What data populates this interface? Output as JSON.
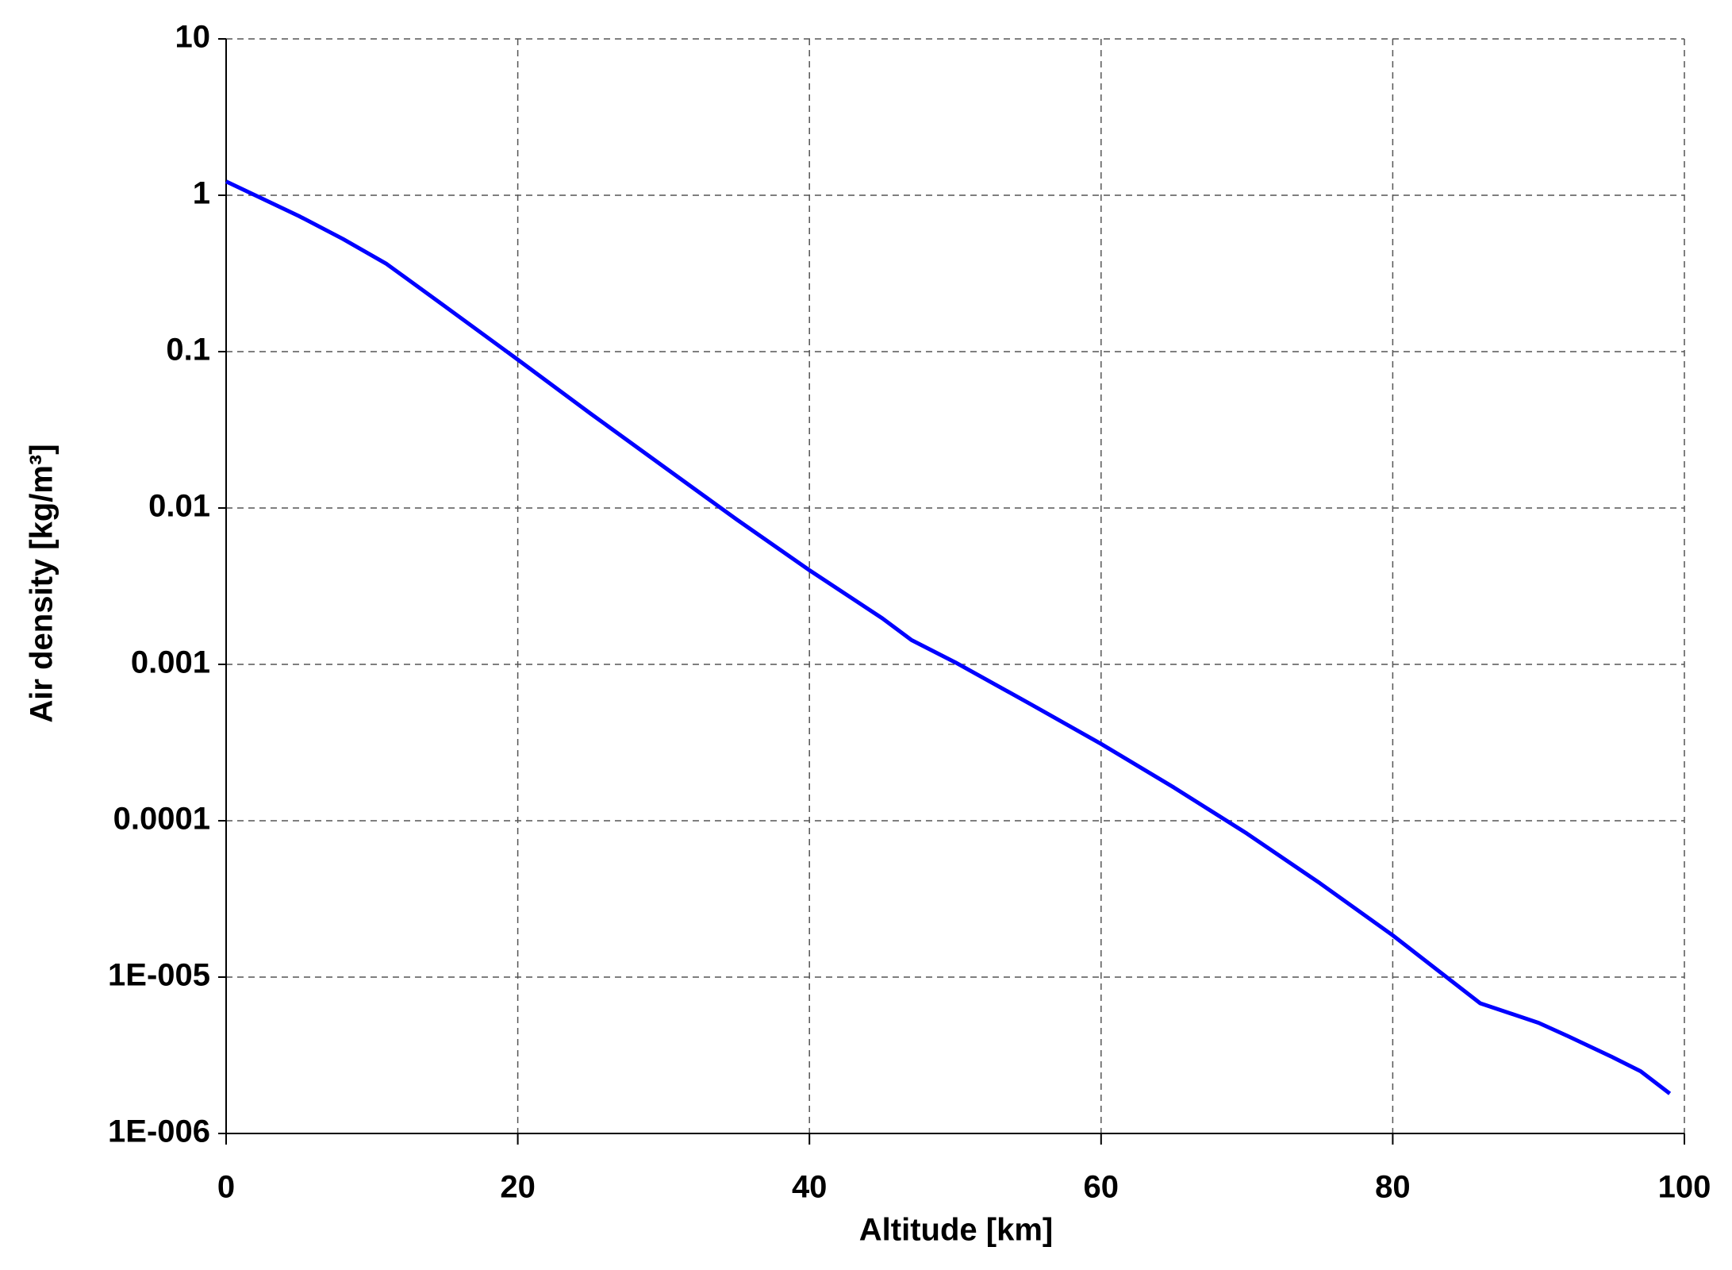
{
  "chart_data": {
    "type": "line",
    "x_label": "Altitude [km]",
    "y_label": "Air density [kg/m³]",
    "x": [
      0,
      5,
      8,
      11,
      15,
      20,
      25,
      30,
      35,
      40,
      45,
      47,
      50,
      55,
      60,
      65,
      70,
      75,
      80,
      86,
      90,
      92,
      95,
      97,
      99
    ],
    "series": [
      {
        "color": "#0000ff",
        "values": [
          1.225,
          0.736,
          0.526,
          0.364,
          0.195,
          0.0889,
          0.0401,
          0.0184,
          0.00846,
          0.004,
          0.00197,
          0.00143,
          0.00103,
          0.000568,
          0.00031,
          0.000163,
          8.28e-05,
          3.99e-05,
          1.85e-05,
          6.8e-06,
          5.1e-06,
          4.2e-06,
          3.1e-06,
          2.5e-06,
          1.8e-06
        ]
      }
    ],
    "xlim": [
      0,
      100
    ],
    "xticks": [
      0,
      20,
      40,
      60,
      80,
      100
    ],
    "ylim": [
      1e-06,
      10
    ],
    "yticks": [
      {
        "value": 1e-06,
        "label": "1E-006"
      },
      {
        "value": 1e-05,
        "label": "1E-005"
      },
      0.0001,
      0.001,
      0.01,
      0.1,
      1,
      10
    ],
    "ylog": true,
    "grid": true
  }
}
